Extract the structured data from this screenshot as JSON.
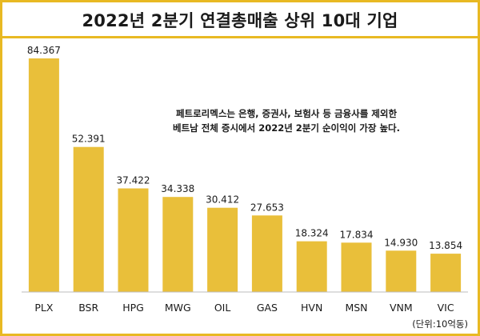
{
  "header": {
    "title": "2022년 2분기 연결총매출 상위 10대 기업"
  },
  "annotation": {
    "line1": "페트로리멕스는 은행, 증권사, 보험사 등 금융사를 제외한",
    "line2": "베트남 전체 증시에서 2022년 2분기 순이익이 가장 높다."
  },
  "unit_label": "(단위:10억동)",
  "colors": {
    "bar": "#E9BF3A",
    "frame": "#E8B923",
    "baseline": "#BDBDBD"
  },
  "chart_data": {
    "type": "bar",
    "title": "2022년 2분기 연결총매출 상위 10대 기업",
    "xlabel": "",
    "ylabel": "",
    "categories": [
      "PLX",
      "BSR",
      "HPG",
      "MWG",
      "OIL",
      "GAS",
      "HVN",
      "MSN",
      "VNM",
      "VIC"
    ],
    "values": [
      84.367,
      52.391,
      37.422,
      34.338,
      30.412,
      27.653,
      18.324,
      17.834,
      14.93,
      13.854
    ],
    "value_labels": [
      "84.367",
      "52.391",
      "37.422",
      "34.338",
      "30.412",
      "27.653",
      "18.324",
      "17.834",
      "14.930",
      "13.854"
    ],
    "ylim": [
      0,
      84.367
    ],
    "grid": false,
    "legend": "none",
    "unit": "(단위:10억동)"
  }
}
